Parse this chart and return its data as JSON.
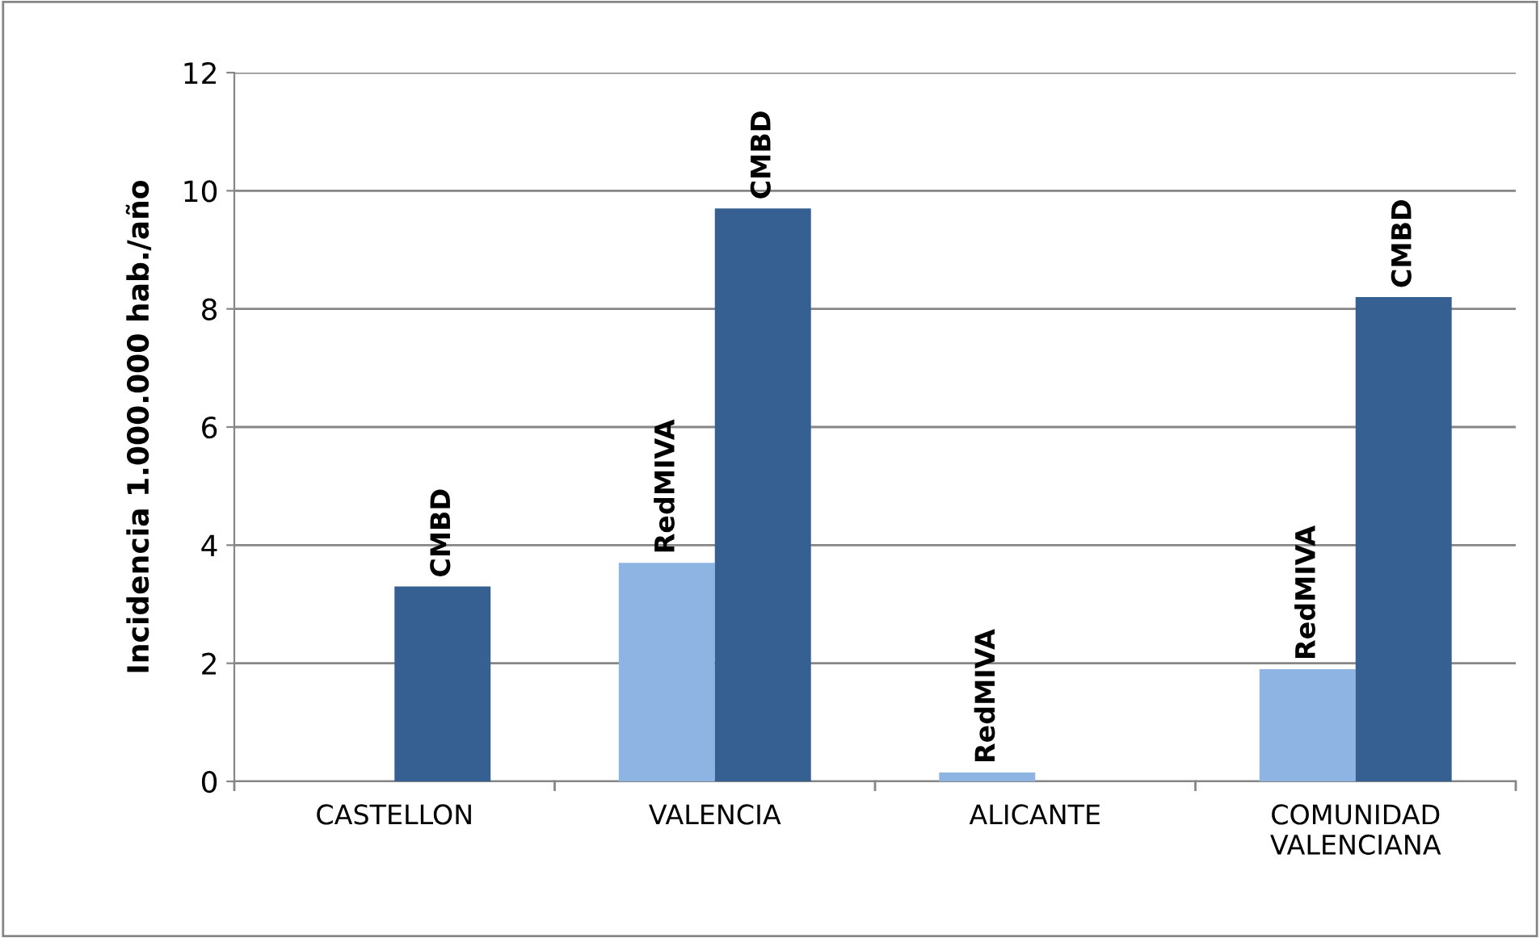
{
  "chart_data": {
    "type": "bar",
    "ylabel": "Incidencia 1.000.000 hab./año",
    "categories": [
      "CASTELLON",
      "VALENCIA",
      "ALICANTE",
      "COMUNIDAD VALENCIANA"
    ],
    "series": [
      {
        "name": "RedMIVA",
        "color": "#8eb4e3",
        "values": [
          null,
          3.7,
          0.15,
          1.9
        ]
      },
      {
        "name": "CMBD",
        "color": "#376092",
        "values": [
          3.3,
          9.7,
          null,
          8.2
        ]
      }
    ],
    "ylim": [
      0,
      12
    ],
    "yticks": [
      0,
      2,
      4,
      6,
      8,
      10,
      12
    ],
    "grid": "y",
    "legend": false
  }
}
